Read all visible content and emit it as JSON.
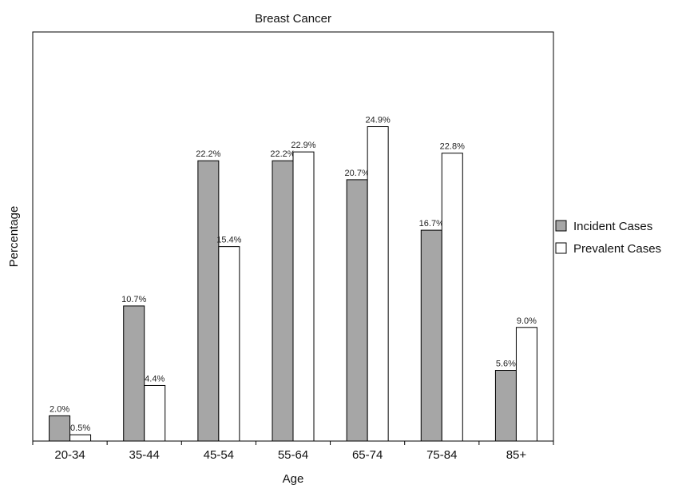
{
  "chart_data": {
    "type": "bar",
    "title": "Breast Cancer",
    "xlabel": "Age",
    "ylabel": "Percentage",
    "categories": [
      "20-34",
      "35-44",
      "45-54",
      "55-64",
      "65-74",
      "75-84",
      "85+"
    ],
    "series": [
      {
        "name": "Incident Cases",
        "color": "#a6a6a6",
        "values": [
          2.0,
          10.7,
          22.2,
          22.2,
          20.7,
          16.7,
          5.6
        ],
        "labels": [
          "2.0%",
          "10.7%",
          "22.2%",
          "22.2%",
          "20.7%",
          "16.7%",
          "5.6%"
        ]
      },
      {
        "name": "Prevalent Cases",
        "color": "#ffffff",
        "values": [
          0.5,
          4.4,
          15.4,
          22.9,
          24.9,
          22.8,
          9.0
        ],
        "labels": [
          "0.5%",
          "4.4%",
          "15.4%",
          "22.9%",
          "24.9%",
          "22.8%",
          "9.0%"
        ]
      }
    ],
    "ylim": [
      0,
      32.4
    ],
    "grid": false,
    "legend_position": "right"
  }
}
